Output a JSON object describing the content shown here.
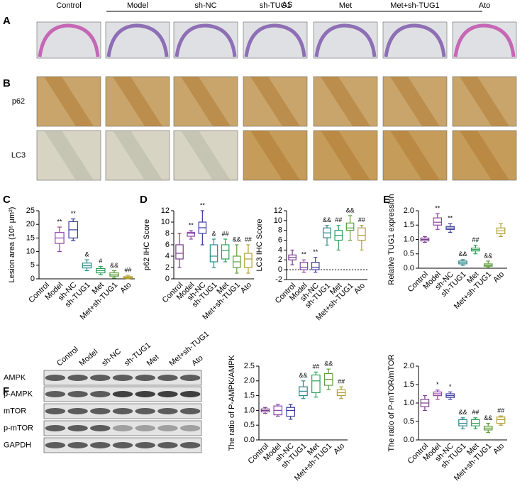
{
  "group_header": "AS",
  "columns": [
    "Control",
    "Model",
    "sh-NC",
    "sh-TUG1",
    "Met",
    "Met+sh-TUG1",
    "Ato"
  ],
  "panel_labels": [
    "A",
    "B",
    "C",
    "D",
    "E",
    "F"
  ],
  "ihc_rows": [
    "p62",
    "LC3"
  ],
  "blot": {
    "columns": [
      "Control",
      "Model",
      "sh-NC",
      "sh-TUG1",
      "Met",
      "Met+sh-TUG1",
      "Ato"
    ],
    "rows": [
      "AMPK",
      "p-AMPK",
      "mTOR",
      "p-mTOR",
      "GAPDH"
    ]
  },
  "chart_data": [
    {
      "type": "box",
      "ylabel": "Lesion area (10⁵ μm²)",
      "categories": [
        "Control",
        "Model",
        "sh-NC",
        "sh-TUG1",
        "Met",
        "Met+sh-TUG1",
        "Ato"
      ],
      "colors": [
        "#7a3d8c",
        "#8e44ad",
        "#3b3b9c",
        "#2a8a8a",
        "#2ca05a",
        "#5e9e3a",
        "#b0a030"
      ],
      "min": [
        null,
        10,
        14,
        3,
        1.5,
        0.3,
        0
      ],
      "q1": [
        null,
        13,
        15,
        4,
        2.2,
        1,
        0.2
      ],
      "median": [
        null,
        15,
        18,
        4.8,
        3,
        1.5,
        0.5
      ],
      "q3": [
        null,
        17,
        21,
        5.8,
        3.8,
        2.2,
        0.8
      ],
      "max": [
        null,
        19,
        22,
        7,
        4.5,
        3,
        1.3
      ],
      "annotations": [
        null,
        "**",
        "**",
        "&",
        "#",
        "&&",
        "##"
      ],
      "ylim": [
        0,
        25
      ],
      "yticks": [
        0,
        5,
        10,
        15,
        20,
        25
      ]
    },
    {
      "type": "box",
      "ylabel": "p62 IHC Score",
      "categories": [
        "Control",
        "Model",
        "sh-NC",
        "sh-TUG1",
        "Met",
        "Met+sh-TUG1",
        "Ato"
      ],
      "colors": [
        "#7a3d8c",
        "#8e44ad",
        "#3b3b9c",
        "#2a8a8a",
        "#2ca05a",
        "#5e9e3a",
        "#b0a030"
      ],
      "min": [
        2,
        7,
        6,
        2,
        3,
        1,
        1
      ],
      "q1": [
        3.5,
        7.5,
        8,
        3,
        3.5,
        2,
        2
      ],
      "median": [
        4.5,
        8,
        9,
        4,
        5,
        3,
        3.5
      ],
      "q3": [
        6,
        8.2,
        10,
        6,
        6,
        4,
        4.5
      ],
      "max": [
        8,
        8.5,
        12,
        7,
        7,
        6,
        6
      ],
      "annotations": [
        null,
        "**",
        "**",
        "&",
        "##",
        "&&",
        "##"
      ],
      "ylim": [
        0,
        12
      ],
      "yticks": [
        0,
        2,
        4,
        6,
        8,
        10,
        12
      ]
    },
    {
      "type": "box",
      "ylabel": "LC3 IHC Score",
      "categories": [
        "Control",
        "Model",
        "sh-NC",
        "sh-TUG1",
        "Met",
        "Met+sh-TUG1",
        "Ato"
      ],
      "colors": [
        "#7a3d8c",
        "#8e44ad",
        "#3b3b9c",
        "#2a8a8a",
        "#2ca05a",
        "#5e9e3a",
        "#b0a030"
      ],
      "min": [
        1,
        -0.5,
        -0.5,
        5,
        4,
        6,
        4
      ],
      "q1": [
        2,
        0,
        0,
        6.5,
        6,
        8,
        6
      ],
      "median": [
        2.5,
        0.5,
        0.5,
        7.5,
        7,
        8.5,
        7
      ],
      "q3": [
        3,
        1.5,
        1.5,
        8.5,
        8,
        9.5,
        8.5
      ],
      "max": [
        4,
        2,
        2.5,
        9,
        9,
        11,
        9
      ],
      "annotations": [
        null,
        "**",
        "**",
        "&&",
        "##",
        "&&",
        "##"
      ],
      "reference_line": 0,
      "ylim": [
        -2,
        12
      ],
      "yticks": [
        -2,
        0,
        2,
        4,
        6,
        8,
        10,
        12
      ]
    },
    {
      "type": "box",
      "ylabel": "Relative TUG1 expression",
      "categories": [
        "Control",
        "Model",
        "sh-NC",
        "sh-TUG1",
        "Met",
        "Met+sh-TUG1",
        "Ato"
      ],
      "colors": [
        "#7a3d8c",
        "#8e44ad",
        "#3b3b9c",
        "#2a8a8a",
        "#2ca05a",
        "#5e9e3a",
        "#b0a030"
      ],
      "min": [
        0.9,
        1.35,
        1.25,
        0.1,
        0.5,
        0.02,
        1.1
      ],
      "q1": [
        0.95,
        1.5,
        1.35,
        0.15,
        0.6,
        0.07,
        1.2
      ],
      "median": [
        1,
        1.6,
        1.4,
        0.2,
        0.65,
        0.1,
        1.3
      ],
      "q3": [
        1.05,
        1.75,
        1.45,
        0.25,
        0.7,
        0.15,
        1.4
      ],
      "max": [
        1.1,
        1.9,
        1.55,
        0.3,
        0.8,
        0.25,
        1.55
      ],
      "annotations": [
        null,
        "**",
        "**",
        "&&",
        "##",
        "&&",
        null
      ],
      "ylim": [
        0,
        2
      ],
      "yticks": [
        {
          "value": 0,
          "label": "0.0"
        },
        {
          "value": 0.5,
          "label": "0.5"
        },
        {
          "value": 1,
          "label": "1.0"
        },
        {
          "value": 1.5,
          "label": "1.5"
        },
        {
          "value": 2,
          "label": "2.0"
        }
      ]
    },
    {
      "type": "box",
      "ylabel": "The ratio of P-AMPK/AMPK",
      "categories": [
        "Control",
        "Model",
        "sh-NC",
        "sh-TUG1",
        "Met",
        "Met+sh-TUG1",
        "Ato"
      ],
      "colors": [
        "#7a3d8c",
        "#8e44ad",
        "#3b3b9c",
        "#2a8a8a",
        "#2ca05a",
        "#5e9e3a",
        "#b0a030"
      ],
      "min": [
        0.9,
        0.8,
        0.7,
        1.4,
        1.45,
        1.7,
        1.4
      ],
      "q1": [
        0.95,
        0.85,
        0.8,
        1.5,
        1.6,
        1.85,
        1.5
      ],
      "median": [
        1,
        1,
        1,
        1.65,
        2,
        2.05,
        1.6
      ],
      "q3": [
        1.05,
        1.15,
        1.1,
        1.8,
        2.2,
        2.25,
        1.7
      ],
      "max": [
        1.1,
        1.2,
        1.2,
        2,
        2.3,
        2.4,
        1.8
      ],
      "annotations": [
        null,
        null,
        null,
        "&&",
        "##",
        "&&",
        "##"
      ],
      "ylim": [
        0,
        2.5
      ],
      "yticks": [
        {
          "value": 0,
          "label": "0.0"
        },
        {
          "value": 0.5,
          "label": "0.5"
        },
        {
          "value": 1,
          "label": "1.0"
        },
        {
          "value": 1.5,
          "label": "1.5"
        },
        {
          "value": 2,
          "label": "2.0"
        },
        {
          "value": 2.5,
          "label": "2.5"
        }
      ]
    },
    {
      "type": "box",
      "ylabel": "The ratio of  P-mTOR/mTOR",
      "categories": [
        "Control",
        "Model",
        "sh-NC",
        "sh-TUG1",
        "Met",
        "Met+sh-TUG1",
        "Ato"
      ],
      "colors": [
        "#7a3d8c",
        "#8e44ad",
        "#3b3b9c",
        "#2a8a8a",
        "#2ca05a",
        "#5e9e3a",
        "#b0a030"
      ],
      "min": [
        0.8,
        1.1,
        1.1,
        0.3,
        0.3,
        0.2,
        0.4
      ],
      "q1": [
        0.9,
        1.2,
        1.15,
        0.38,
        0.38,
        0.27,
        0.45
      ],
      "median": [
        1,
        1.25,
        1.2,
        0.45,
        0.45,
        0.32,
        0.55
      ],
      "q3": [
        1.1,
        1.3,
        1.25,
        0.55,
        0.55,
        0.37,
        0.62
      ],
      "max": [
        1.2,
        1.35,
        1.3,
        0.6,
        0.6,
        0.45,
        0.65
      ],
      "annotations": [
        null,
        "*",
        "*",
        "&&",
        "##",
        "&&",
        "##"
      ],
      "ylim": [
        0,
        2
      ],
      "yticks": [
        {
          "value": 0,
          "label": "0.0"
        },
        {
          "value": 0.5,
          "label": "0.5"
        },
        {
          "value": 1,
          "label": "1.0"
        },
        {
          "value": 1.5,
          "label": "1.5"
        },
        {
          "value": 2,
          "label": "2.0"
        }
      ]
    }
  ]
}
